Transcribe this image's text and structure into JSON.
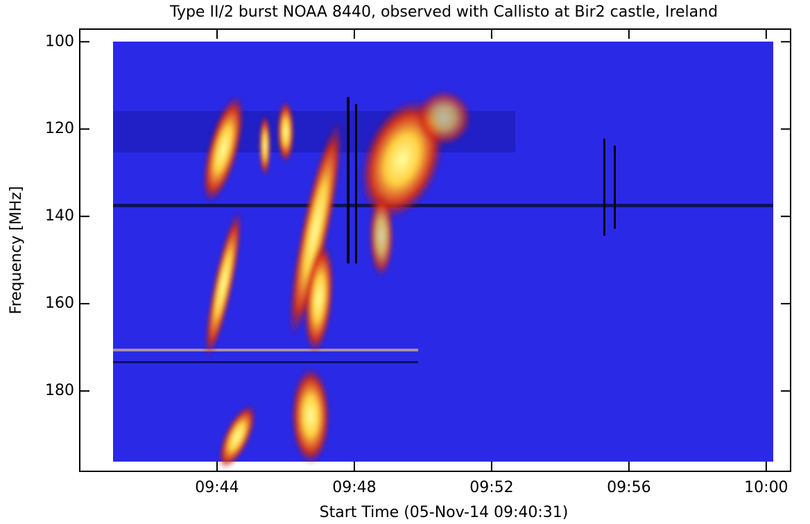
{
  "chart_data": {
    "type": "spectrogram",
    "title": "Type II/2 burst NOAA 8440, observed with Callisto at Bir2 castle, Ireland",
    "x_label": "Start Time (05-Nov-14 09:40:31)",
    "y_label": "Frequency [MHz]",
    "xlim": [
      580,
      600.71
    ],
    "xticks": [
      {
        "value": 584,
        "label": "09:44"
      },
      {
        "value": 588,
        "label": "09:48"
      },
      {
        "value": 592,
        "label": "09:52"
      },
      {
        "value": 596,
        "label": "09:56"
      },
      {
        "value": 600,
        "label": "10:00"
      }
    ],
    "ylim": [
      198.4,
      97.1
    ],
    "yticks": [
      100,
      120,
      140,
      160,
      180
    ]
  }
}
